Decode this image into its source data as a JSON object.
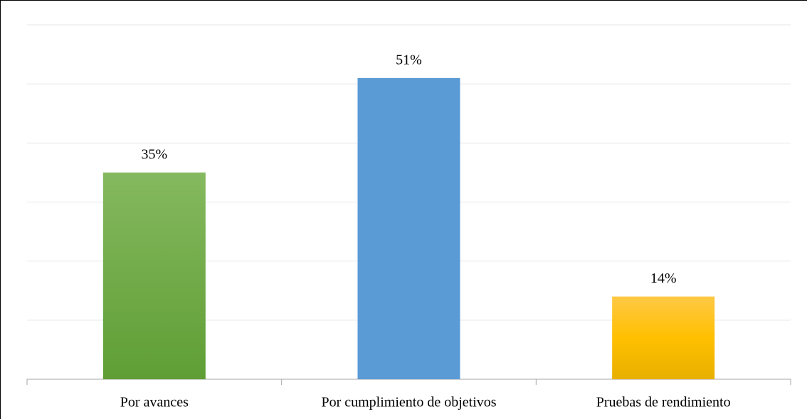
{
  "chart_data": {
    "type": "bar",
    "categories": [
      "Por avances",
      "Por cumplimiento de objetivos",
      "Pruebas de rendimiento"
    ],
    "values": [
      35,
      51,
      14
    ],
    "value_labels": [
      "35%",
      "51%",
      "14%"
    ],
    "colors": [
      "#70ad47",
      "#5b9bd5",
      "#ffc000"
    ],
    "ylim": [
      0,
      60
    ],
    "yticks": [
      0,
      10,
      20,
      30,
      40,
      50,
      60
    ],
    "grid": true
  }
}
